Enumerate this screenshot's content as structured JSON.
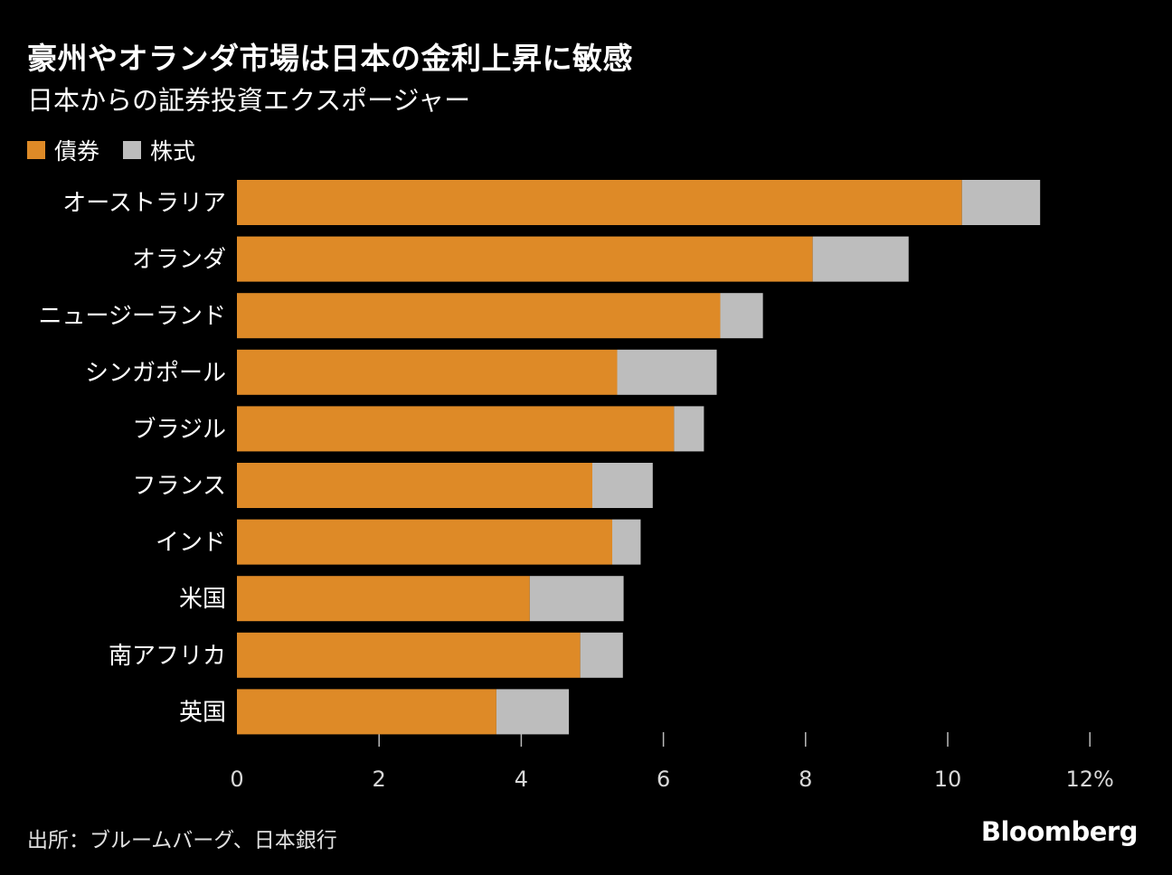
{
  "header": {
    "title": "豪州やオランダ市場は日本の金利上昇に敏感",
    "subtitle": "日本からの証券投資エクスポージャー"
  },
  "legend": {
    "bonds_label": "債券",
    "equities_label": "株式"
  },
  "colors": {
    "bonds": "#de8a27",
    "equities": "#bdbdbd",
    "background": "#000000",
    "text": "#ffffff",
    "tick": "#bbbbbb"
  },
  "chart_data": {
    "type": "bar",
    "orientation": "horizontal",
    "stacked": true,
    "categories": [
      "オーストラリア",
      "オランダ",
      "ニュージーランド",
      "シンガポール",
      "ブラジル",
      "フランス",
      "インド",
      "米国",
      "南アフリカ",
      "英国"
    ],
    "series": [
      {
        "name": "債券",
        "values": [
          10.2,
          8.1,
          6.8,
          5.35,
          6.15,
          5.0,
          5.28,
          4.12,
          4.83,
          3.65
        ]
      },
      {
        "name": "株式",
        "values": [
          1.1,
          1.35,
          0.6,
          1.4,
          0.42,
          0.85,
          0.4,
          1.32,
          0.6,
          1.02
        ]
      }
    ],
    "x_ticks": [
      "0",
      "2",
      "4",
      "6",
      "8",
      "10",
      "12%"
    ],
    "x_tick_values": [
      0,
      2,
      4,
      6,
      8,
      10,
      12
    ],
    "xlim": [
      0,
      12
    ],
    "xlabel": "",
    "ylabel": "",
    "legend_position": "top-left"
  },
  "footer": {
    "source": "出所：ブルームバーグ、日本銀行",
    "logo": "Bloomberg"
  }
}
